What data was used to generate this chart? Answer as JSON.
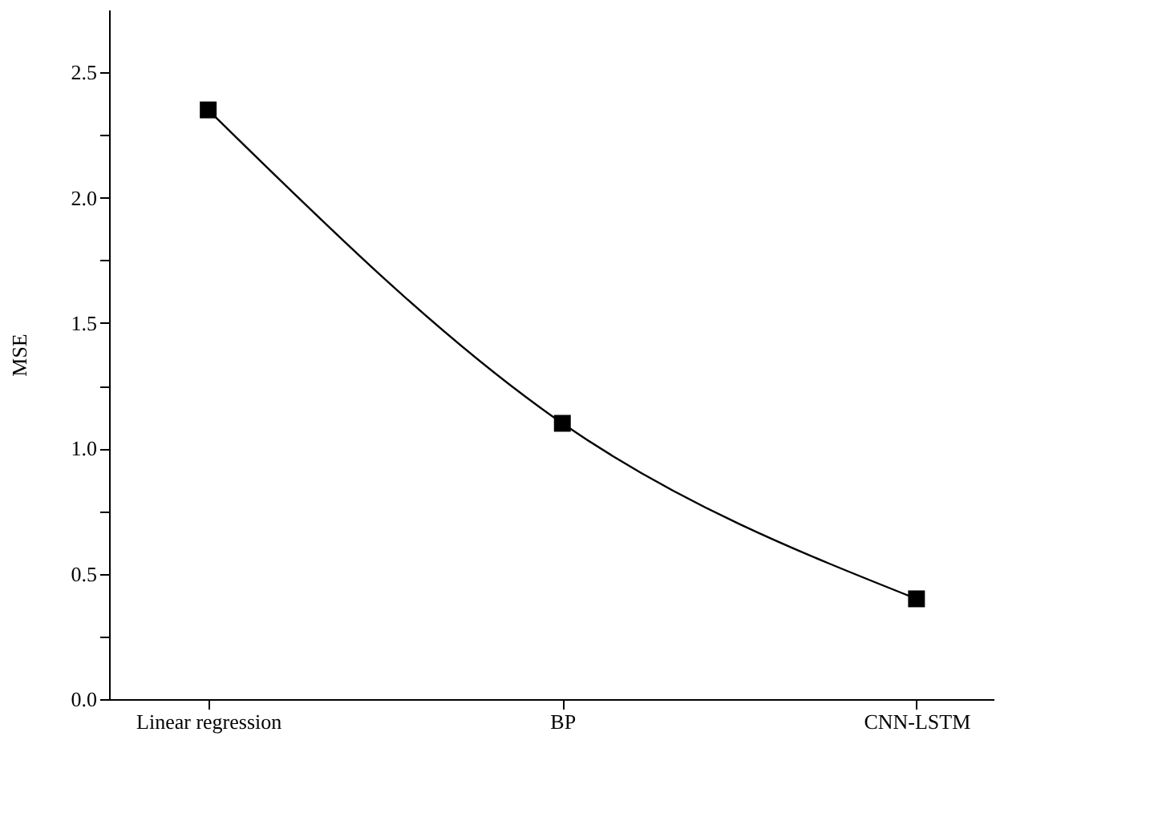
{
  "chart_data": {
    "type": "line",
    "ylabel": "MSE",
    "categories": [
      "Linear regression",
      "BP",
      "CNN-LSTM"
    ],
    "series": [
      {
        "color": "#000000",
        "values": [
          2.35,
          1.1,
          0.4
        ]
      }
    ],
    "ylim": [
      0,
      2.75
    ],
    "yticks": [
      {
        "value": 0,
        "label": "0.0"
      },
      {
        "value": 0.25,
        "label": null
      },
      0.5,
      {
        "value": 0.75,
        "label": null
      },
      {
        "value": 1,
        "label": "1.0"
      },
      {
        "value": 1.25,
        "label": null
      },
      1.5,
      {
        "value": 1.75,
        "label": null
      },
      {
        "value": 2,
        "label": "2.0"
      },
      {
        "value": 2.25,
        "label": null
      },
      2.5
    ],
    "marker": "square",
    "line_style": "solid",
    "grid": false
  }
}
